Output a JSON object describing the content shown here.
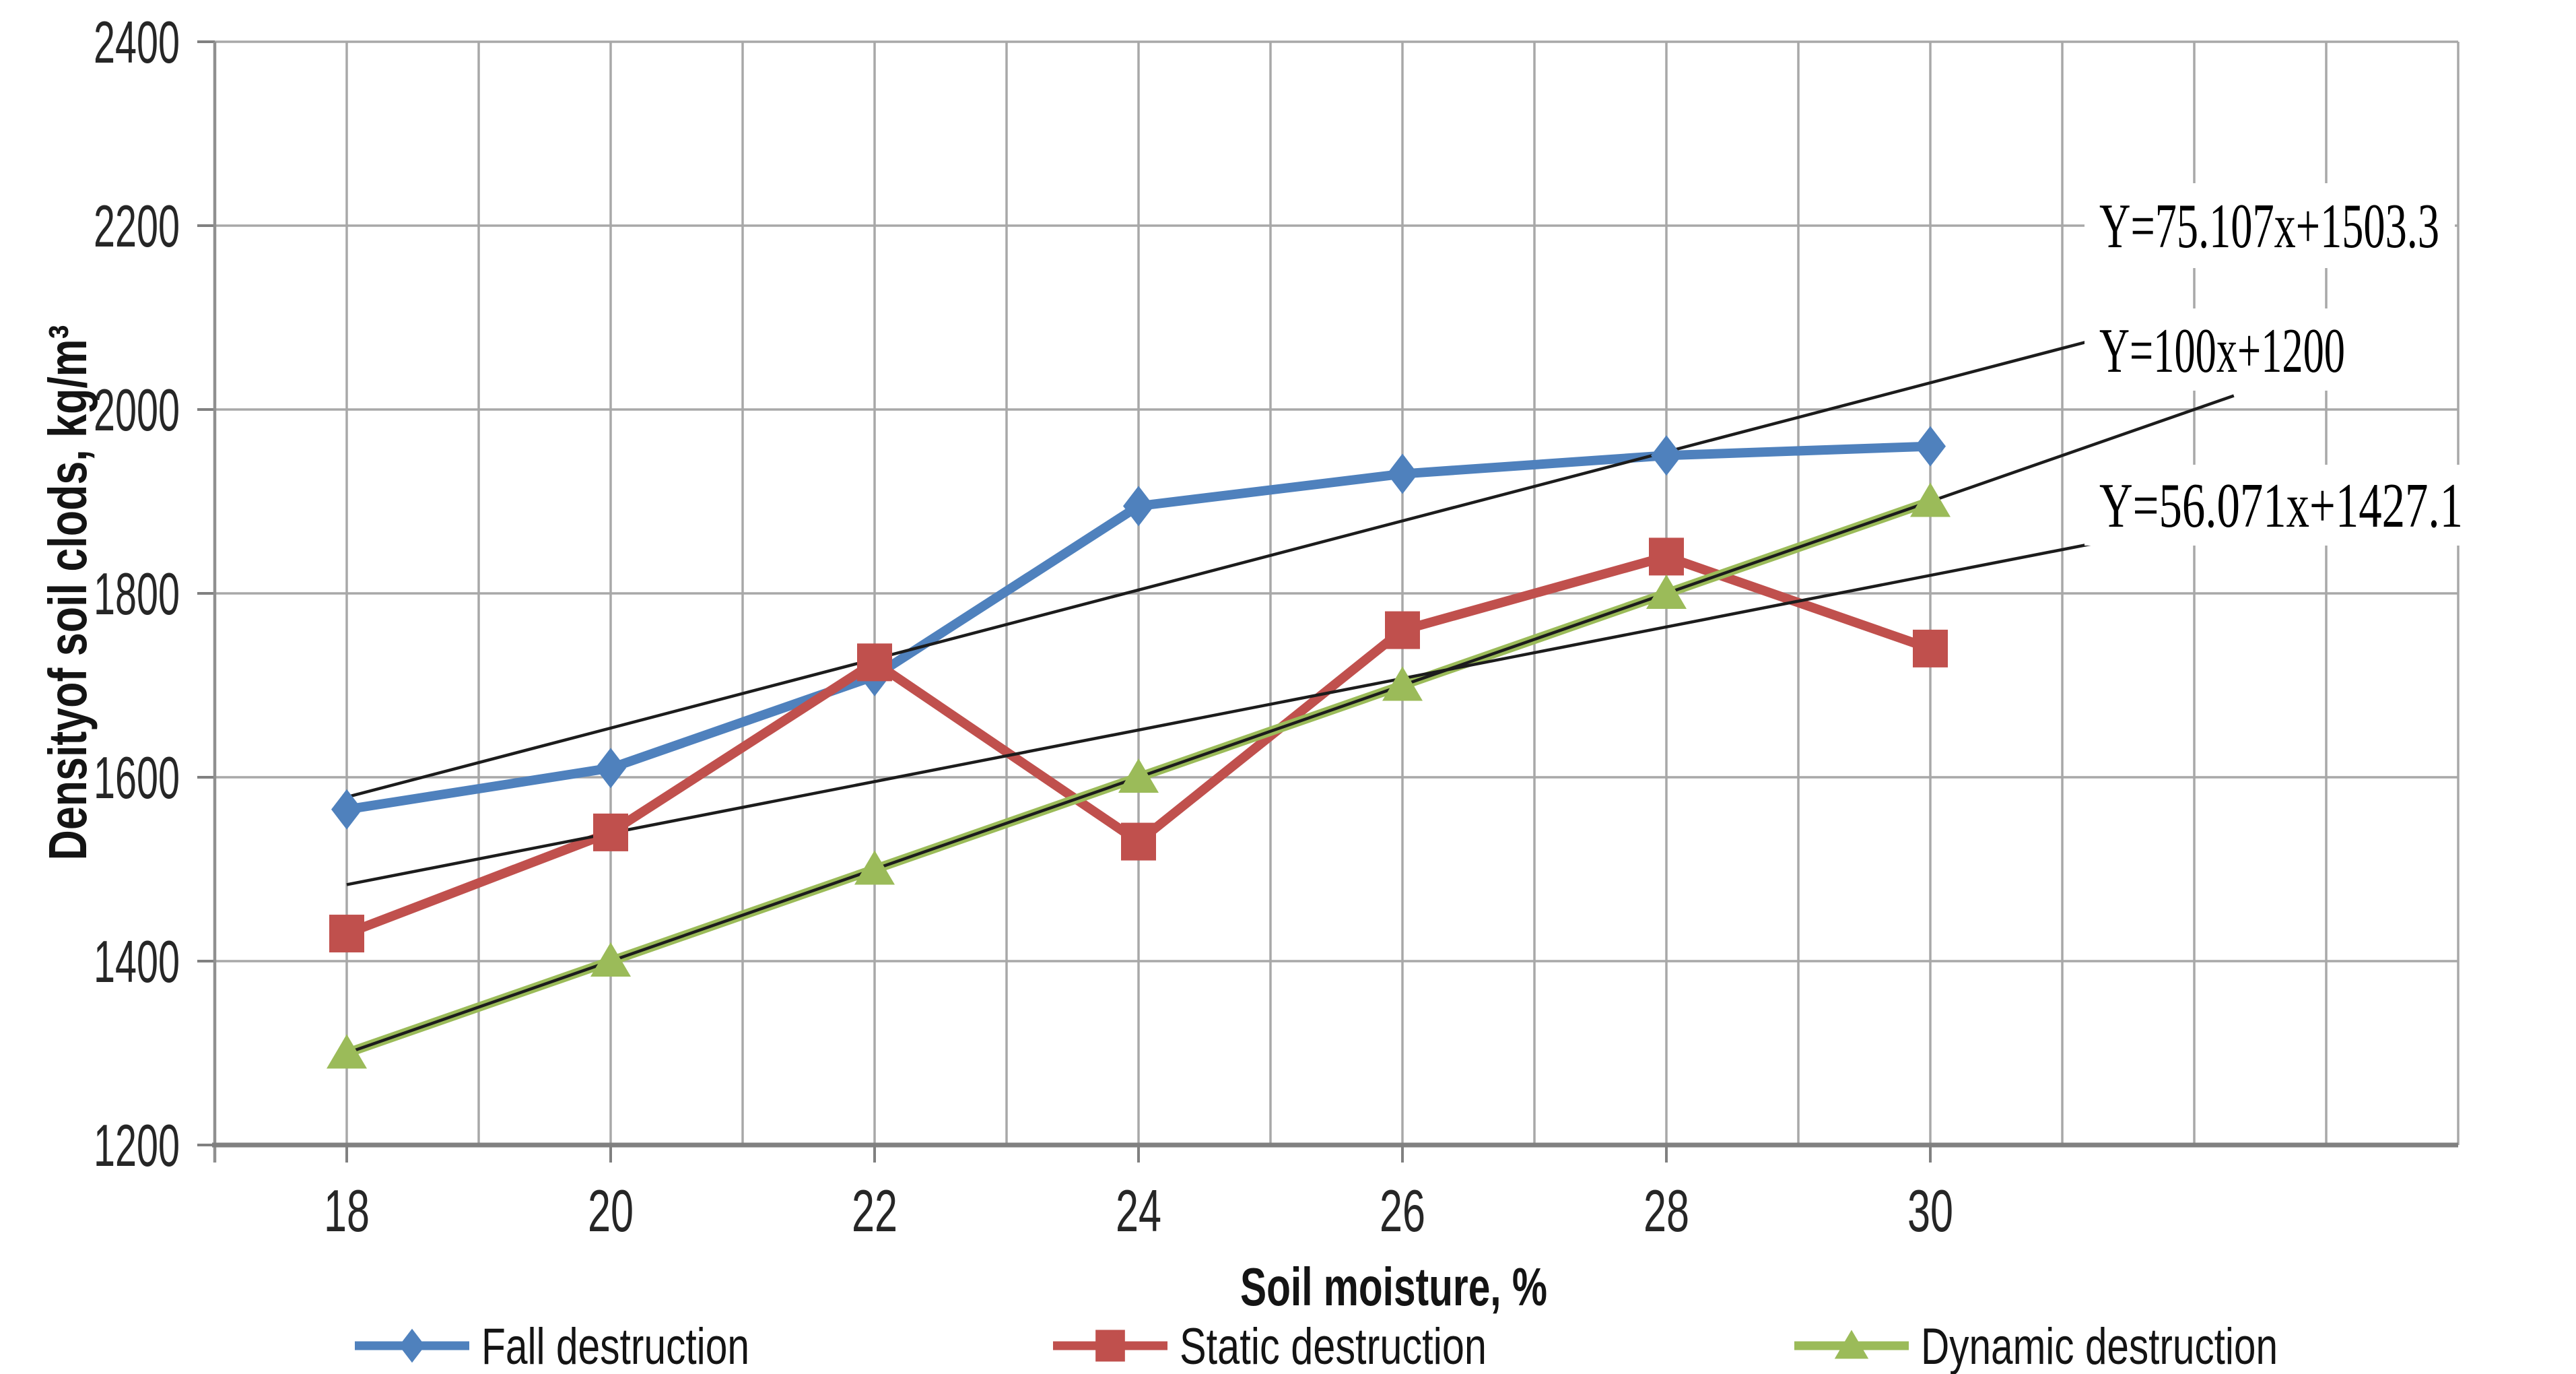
{
  "chart_data": {
    "type": "line",
    "title": "",
    "xlabel": "Soil moisture, %",
    "ylabel": "Densityof soil clods, kg/m³",
    "x_categories": [
      18,
      20,
      22,
      24,
      26,
      28,
      30
    ],
    "x_ticks": [
      "18",
      "20",
      "22",
      "24",
      "26",
      "28",
      "30"
    ],
    "y_ticks": [
      "2400",
      "2200",
      "2000",
      "1800",
      "1600",
      "1400",
      "1200"
    ],
    "y_tick_values": [
      2400,
      2200,
      2000,
      1800,
      1600,
      1400,
      1200
    ],
    "ylim": [
      1200,
      2400
    ],
    "xlim": [
      17,
      34
    ],
    "grid": true,
    "legend_position": "bottom",
    "series": [
      {
        "name": "Fall destruction",
        "marker": "diamond",
        "color": "#4F81BD",
        "values": [
          1565,
          1610,
          1710,
          1895,
          1930,
          1950,
          1960
        ]
      },
      {
        "name": "Static destruction",
        "marker": "square",
        "color": "#C0504D",
        "values": [
          1430,
          1540,
          1725,
          1530,
          1760,
          1840,
          1740
        ]
      },
      {
        "name": "Dynamic destruction",
        "marker": "triangle",
        "color": "#9BBB59",
        "values": [
          1300,
          1400,
          1500,
          1600,
          1700,
          1800,
          1900
        ]
      }
    ],
    "trendlines": [
      {
        "label": "Y=75.107x+1503.3",
        "slope": 75.107,
        "intercept": 1503.3,
        "x_start": 18,
        "x_end": 31.3
      },
      {
        "label": "Y=100x+1200",
        "slope": 100,
        "intercept": 1200,
        "x_start": 18,
        "x_end": 32.3
      },
      {
        "label": "Y=56.071x+1427.1",
        "slope": 56.071,
        "intercept": 1427.1,
        "x_start": 18,
        "x_end": 31.3
      }
    ],
    "colors": {
      "grid": "#A8A8A8",
      "axis": "#808080",
      "trendline": "#1C1C1C",
      "text": "#262626"
    }
  }
}
